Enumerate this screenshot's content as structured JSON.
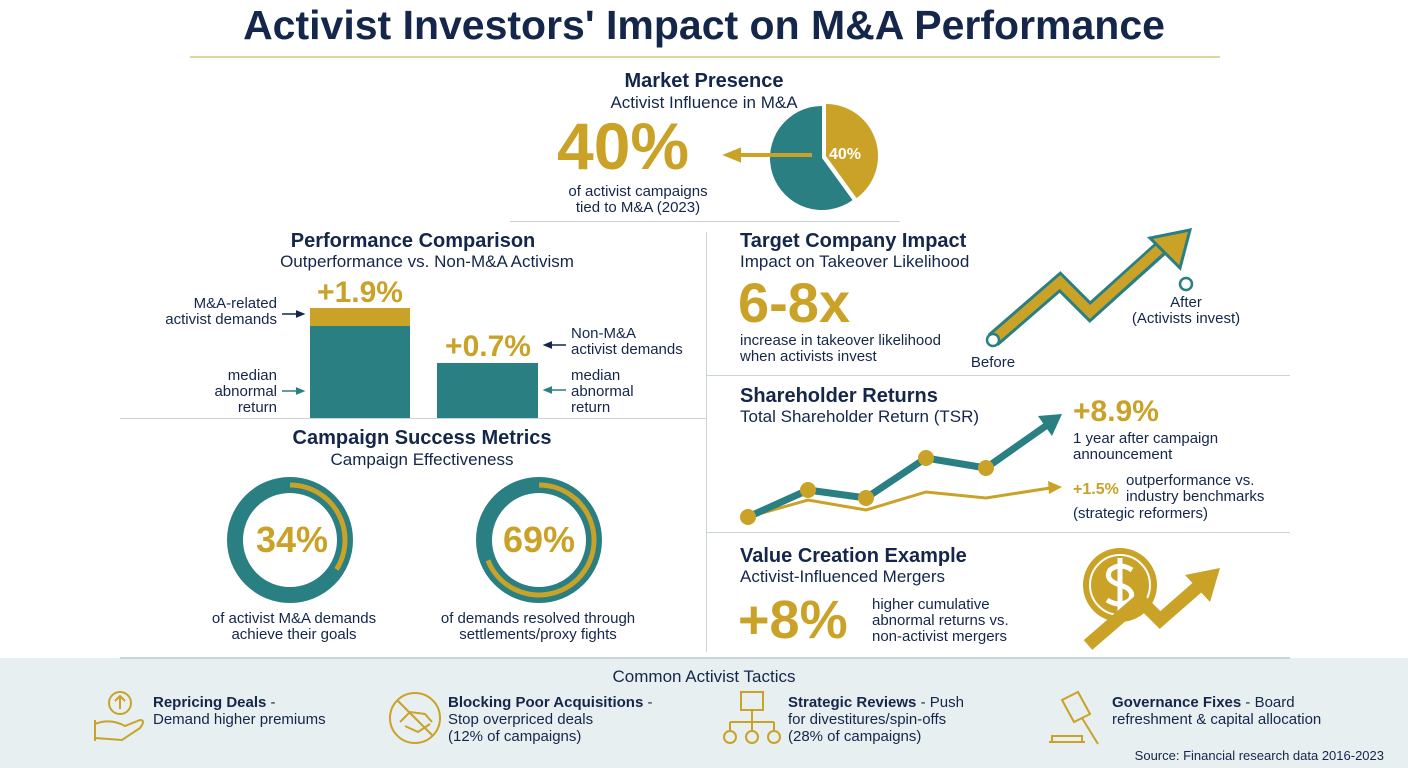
{
  "title": "Activist Investors' Impact on M&A Performance",
  "colors": {
    "navy": "#14264a",
    "gold": "#c9a227",
    "teal": "#2a7f82"
  },
  "market": {
    "title": "Market Presence",
    "subtitle": "Activist Influence in M&A",
    "value": "40%",
    "pie_label": "40%",
    "pie_fraction": 0.4,
    "caption1": "of activist campaigns",
    "caption2": "tied to M&A (2023)"
  },
  "performance": {
    "title": "Performance Comparison",
    "subtitle": "Outperformance vs. Non-M&A Activism",
    "bar1": {
      "value": "+1.9%",
      "label1": "M&A-related",
      "label2": "activist demands",
      "sub1": "median",
      "sub2": "abnormal",
      "sub3": "return"
    },
    "bar2": {
      "value": "+0.7%",
      "label1": "Non-M&A",
      "label2": "activist demands",
      "sub1": "median",
      "sub2": "abnormal",
      "sub3": "return"
    }
  },
  "campaign": {
    "title": "Campaign Success Metrics",
    "subtitle": "Campaign Effectiveness",
    "d1": {
      "value": "34%",
      "fraction": 0.34,
      "cap1": "of activist M&A demands",
      "cap2": "achieve their goals"
    },
    "d2": {
      "value": "69%",
      "fraction": 0.69,
      "cap1": "of demands resolved through",
      "cap2": "settlements/proxy fights"
    }
  },
  "target": {
    "title": "Target Company Impact",
    "subtitle": "Impact on Takeover Likelihood",
    "value": "6-8x",
    "cap1": "increase in takeover likelihood",
    "cap2": "when activists invest",
    "before": "Before",
    "after1": "After",
    "after2": "(Activists invest)"
  },
  "shareholder": {
    "title": "Shareholder Returns",
    "subtitle": "Total Shareholder Return (TSR)",
    "value": "+8.9%",
    "cap1": "1 year after campaign",
    "cap2": "announcement",
    "value2": "+1.5%",
    "cap3": "outperformance vs.",
    "cap4": "industry benchmarks",
    "cap5": "(strategic reformers)"
  },
  "value_creation": {
    "title": "Value Creation Example",
    "subtitle": "Activist-Influenced Mergers",
    "value": "+8%",
    "cap1": "higher cumulative",
    "cap2": "abnormal returns vs.",
    "cap3": "non-activist mergers",
    "icon": "dollar-coin-icon"
  },
  "tactics": {
    "title": "Common Activist Tactics",
    "items": [
      {
        "bold": "Repricing Deals",
        "rest1": " -",
        "rest2": "Demand higher premiums",
        "rest3": "",
        "icon": "hand-up-arrow-icon"
      },
      {
        "bold": "Blocking Poor Acquisitions",
        "rest1": " -",
        "rest2": "Stop overpriced deals",
        "rest3": "(12% of campaigns)",
        "icon": "no-handshake-icon"
      },
      {
        "bold": "Strategic Reviews",
        "rest1": " - Push",
        "rest2": "for divestitures/spin-offs",
        "rest3": "(28% of campaigns)",
        "icon": "org-chart-icon"
      },
      {
        "bold": "Governance Fixes",
        "rest1": " - Board",
        "rest2": "refreshment & capital allocation",
        "rest3": "",
        "icon": "gavel-icon"
      }
    ]
  },
  "source": "Source: Financial research data 2016-2023"
}
